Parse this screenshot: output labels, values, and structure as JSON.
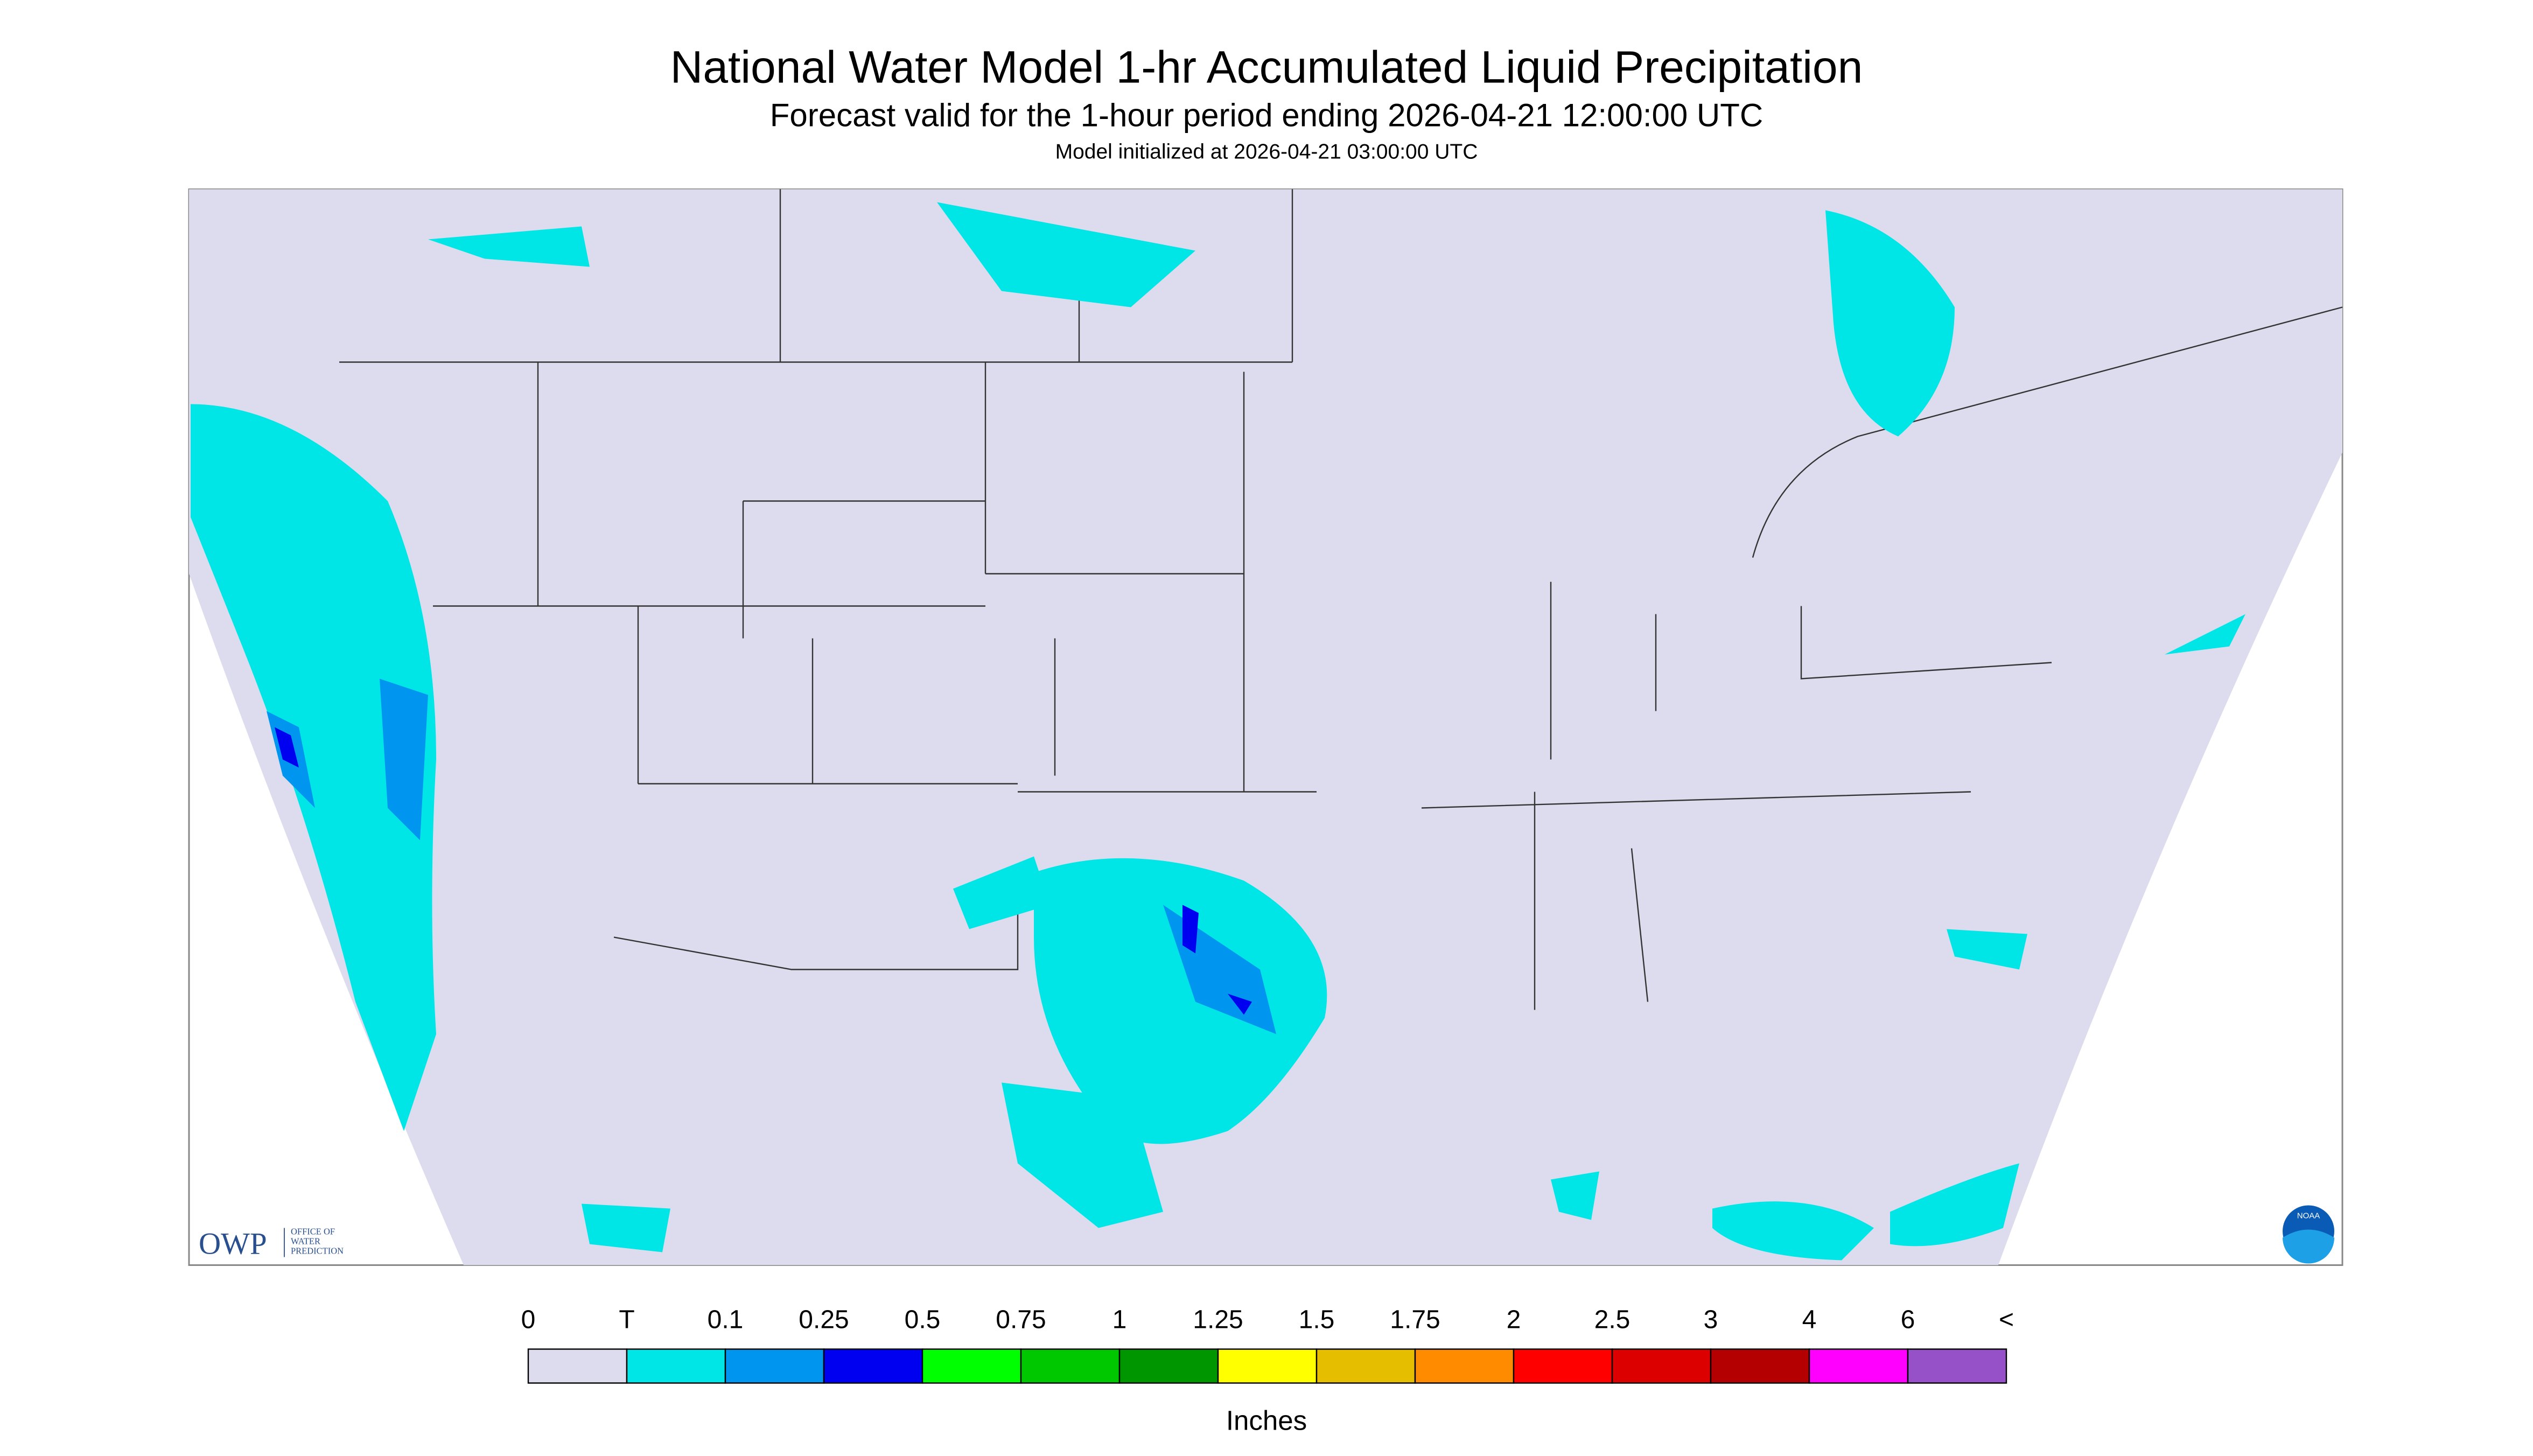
{
  "header": {
    "title": "National Water Model 1-hr Accumulated Liquid Precipitation",
    "subtitle": "Forecast valid for the 1-hour period ending 2026-04-21 12:00:00 UTC",
    "init": "Model initialized at 2026-04-21 03:00:00 UTC"
  },
  "logos": {
    "owp": "OWP",
    "owp_full": [
      "OFFICE OF",
      "WATER",
      "PREDICTION"
    ],
    "noaa": "NOAA"
  },
  "legend": {
    "labels": [
      "0",
      "T",
      "0.1",
      "0.25",
      "0.5",
      "0.75",
      "1",
      "1.25",
      "1.5",
      "1.75",
      "2",
      "2.5",
      "3",
      "4",
      "6",
      "<"
    ],
    "colors": [
      "#dcdcee",
      "#00e6e6",
      "#0096f0",
      "#0000f0",
      "#00ff00",
      "#00c800",
      "#009600",
      "#ffff00",
      "#e6be00",
      "#ff8c00",
      "#ff0000",
      "#dc0000",
      "#b40000",
      "#ff00ff",
      "#9650c8"
    ],
    "unit": "Inches"
  }
}
